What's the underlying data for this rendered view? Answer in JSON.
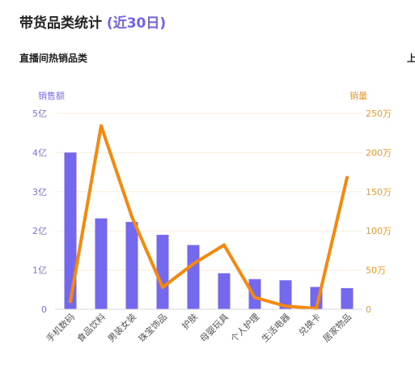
{
  "header": {
    "title": "带货品类统计",
    "subtitle": "(近30日)"
  },
  "section": {
    "title": "直播间热销品类",
    "right_title_partial": "上"
  },
  "colors": {
    "bar": "#7468ee",
    "line": "#f5890e",
    "left_axis_text": "#7a70e6",
    "right_axis_text": "#f0962a",
    "grid": "#fbeedf"
  },
  "chart_data": {
    "type": "bar",
    "categories": [
      "手机数码",
      "食品饮料",
      "男装女装",
      "珠宝饰品",
      "护肤",
      "母婴玩具",
      "个人护理",
      "生活电器",
      "兑换卡",
      "居家物品"
    ],
    "series": [
      {
        "name": "销售额",
        "type": "bar",
        "axis": "left",
        "values": [
          4.0,
          2.32,
          2.23,
          1.9,
          1.64,
          0.92,
          0.77,
          0.74,
          0.57,
          0.54
        ]
      },
      {
        "name": "销量",
        "type": "line",
        "axis": "right",
        "values": [
          10,
          234,
          118,
          28,
          58,
          82,
          15,
          4,
          1,
          168
        ]
      }
    ],
    "left_axis": {
      "label": "销售额",
      "ylim": [
        0,
        5
      ],
      "ticks": [
        "0",
        "1亿",
        "2亿",
        "3亿",
        "4亿",
        "5亿"
      ]
    },
    "right_axis": {
      "label": "销量",
      "ylim": [
        0,
        250
      ],
      "ticks": [
        "0",
        "50万",
        "100万",
        "150万",
        "200万",
        "250万"
      ]
    },
    "grid": true
  }
}
